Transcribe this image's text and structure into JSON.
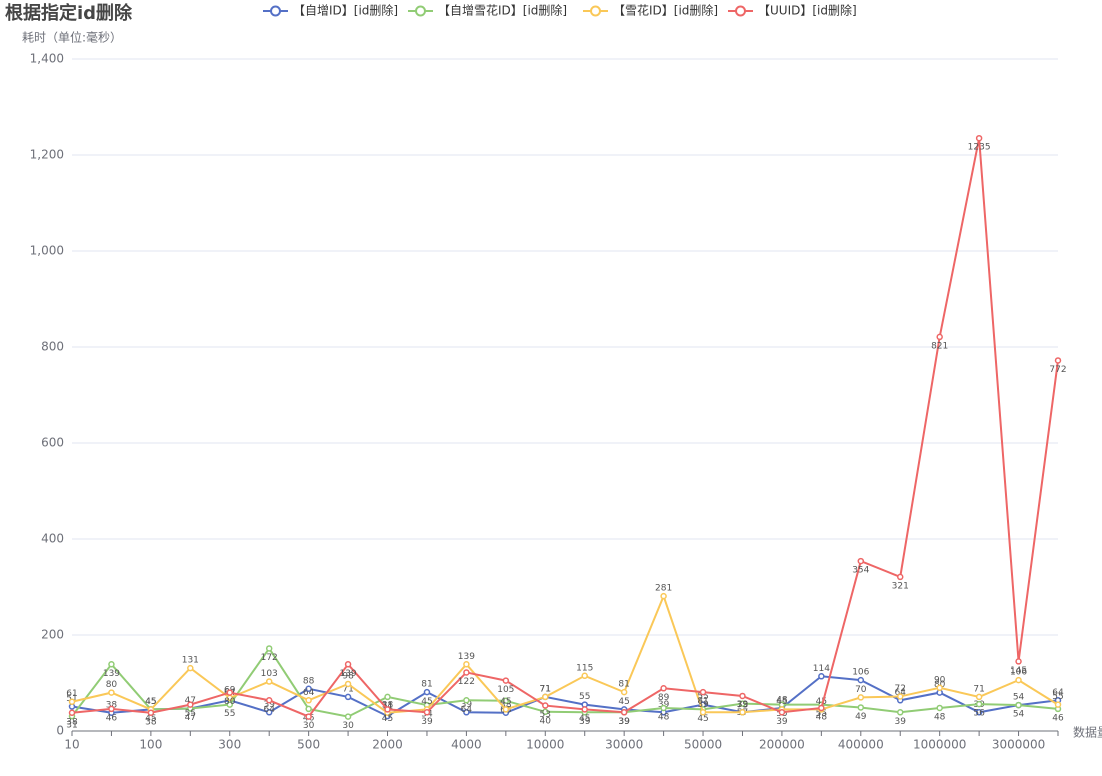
{
  "chart_data": {
    "type": "line",
    "title": "根据指定id删除",
    "ylabel": "耗时（单位:毫秒）",
    "xlabel": "数据量",
    "categories": [
      "10",
      null,
      "100",
      null,
      "300",
      null,
      "500",
      null,
      "2000",
      null,
      "4000",
      null,
      "10000",
      null,
      "30000",
      null,
      "50000",
      null,
      "200000",
      null,
      "400000",
      null,
      "1000000",
      null,
      "3000000",
      null
    ],
    "series": [
      {
        "name": "【自增ID】[id删除]",
        "color": "#5470c6",
        "values": [
          51,
          38,
          45,
          47,
          64,
          39,
          88,
          71,
          31,
          81,
          39,
          38,
          71,
          55,
          45,
          39,
          55,
          39,
          48,
          114,
          106,
          64,
          80,
          39,
          54,
          64
        ]
      },
      {
        "name": "【自增雪花ID】[id删除]",
        "color": "#91cc75",
        "values": [
          31,
          139,
          45,
          47,
          55,
          172,
          46,
          30,
          71,
          54,
          64,
          63,
          40,
          39,
          39,
          48,
          45,
          57,
          55,
          55,
          49,
          39,
          48,
          56,
          54,
          46
        ]
      },
      {
        "name": "【雪花ID】[id删除]",
        "color": "#fac858",
        "values": [
          61,
          80,
          45,
          131,
          69,
          103,
          64,
          98,
          38,
          45,
          139,
          45,
          71,
          115,
          81,
          281,
          39,
          39,
          45,
          45,
          70,
          72,
          90,
          71,
          106,
          55
        ]
      },
      {
        "name": "【UUID】[id删除]",
        "color": "#ee6666",
        "values": [
          38,
          46,
          38,
          55,
          80,
          64,
          30,
          139,
          45,
          39,
          122,
          105,
          53,
          45,
          39,
          89,
          81,
          73,
          39,
          48,
          354,
          321,
          821,
          1235,
          145,
          772
        ]
      }
    ],
    "ylim": [
      0,
      1400
    ],
    "yticks": [
      0,
      200,
      400,
      600,
      800,
      {
        "value": 1000,
        "label": "1,000"
      },
      {
        "value": 1200,
        "label": "1,200"
      },
      {
        "value": 1400,
        "label": "1,400"
      }
    ],
    "grid": true
  }
}
